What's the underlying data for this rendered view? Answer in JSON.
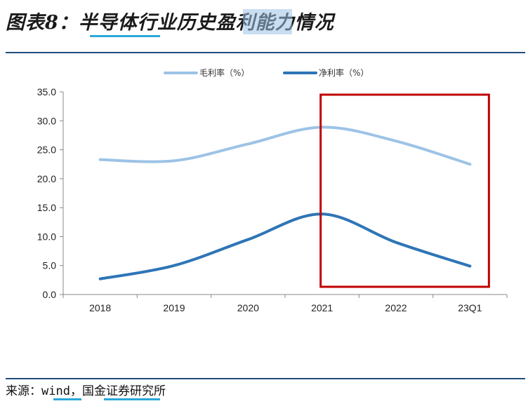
{
  "header": {
    "title": "图表8：半导体行业历史盈利能力情况"
  },
  "footer": {
    "source": "来源：wind，国金证券研究所"
  },
  "colors": {
    "gross_margin": "#9dc3e6",
    "net_margin": "#2e75b6",
    "highlight_box": "#c00000",
    "rule": "#1f4e79"
  },
  "chart_data": {
    "type": "line",
    "categories": [
      "2018",
      "2019",
      "2020",
      "2021",
      "2022",
      "23Q1"
    ],
    "series": [
      {
        "name": "毛利率（%）",
        "values": [
          23.3,
          23.1,
          26.0,
          28.9,
          26.5,
          22.5
        ]
      },
      {
        "name": "净利率（%）",
        "values": [
          2.7,
          5.0,
          9.5,
          13.9,
          9.0,
          4.9
        ]
      }
    ],
    "yticks": [
      "0.0",
      "5.0",
      "10.0",
      "15.0",
      "20.0",
      "25.0",
      "30.0",
      "35.0"
    ],
    "ylim": [
      0,
      35
    ],
    "legend_position": "top",
    "highlight_range": [
      "2021",
      "23Q1"
    ],
    "grid": false
  }
}
